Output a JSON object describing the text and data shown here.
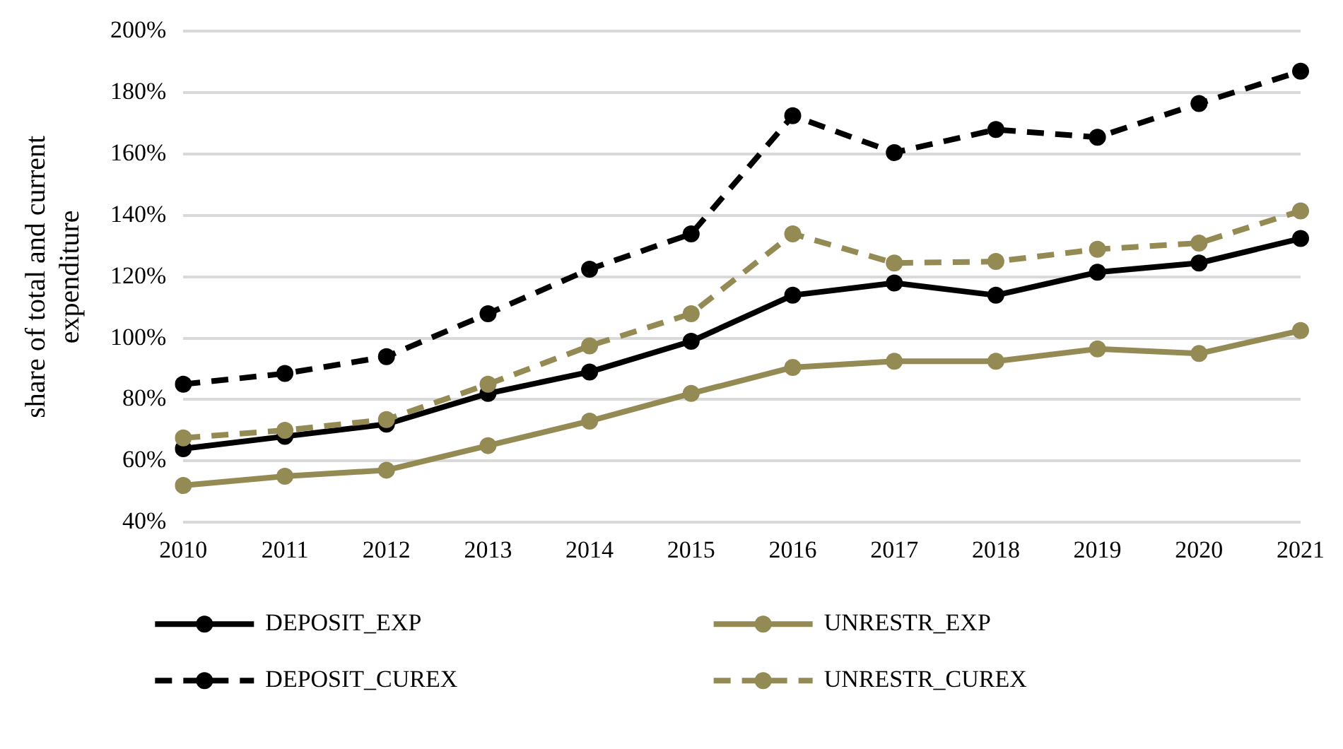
{
  "chart_data": {
    "type": "line",
    "ylabel": "share of total and current expenditure",
    "categories": [
      "2010",
      "2011",
      "2012",
      "2013",
      "2014",
      "2015",
      "2016",
      "2017",
      "2018",
      "2019",
      "2020",
      "2021"
    ],
    "series": [
      {
        "name": "DEPOSIT_EXP",
        "color": "#000000",
        "line_style": "solid",
        "values": [
          64,
          68,
          72,
          82,
          89,
          99,
          114,
          118,
          114,
          121.5,
          124.5,
          132.5
        ]
      },
      {
        "name": "UNRESTR_EXP",
        "color": "#948a54",
        "line_style": "solid",
        "values": [
          52,
          55,
          57,
          65,
          73,
          82,
          90.5,
          92.5,
          92.5,
          96.5,
          95,
          102.5
        ]
      },
      {
        "name": "DEPOSIT_CUREX",
        "color": "#000000",
        "line_style": "dashed",
        "values": [
          85,
          88.5,
          94,
          108,
          122.5,
          134,
          172.5,
          160.5,
          168,
          165.5,
          176.5,
          187
        ]
      },
      {
        "name": "UNRESTR_CUREX",
        "color": "#948a54",
        "line_style": "dashed",
        "values": [
          67.5,
          70,
          73.5,
          85,
          97.5,
          108,
          134,
          124.5,
          125,
          129,
          131,
          141.5
        ]
      }
    ],
    "ylim": [
      40,
      200
    ],
    "yticks": [
      {
        "value": 40,
        "label": "40%"
      },
      {
        "value": 60,
        "label": "60%"
      },
      {
        "value": 80,
        "label": "80%"
      },
      {
        "value": 100,
        "label": "100%"
      },
      {
        "value": 120,
        "label": "120%"
      },
      {
        "value": 140,
        "label": "140%"
      },
      {
        "value": 160,
        "label": "160%"
      },
      {
        "value": 180,
        "label": "180%"
      },
      {
        "value": 200,
        "label": "200%"
      }
    ],
    "grid": "y",
    "legend": "bottom",
    "marker": "circle"
  }
}
